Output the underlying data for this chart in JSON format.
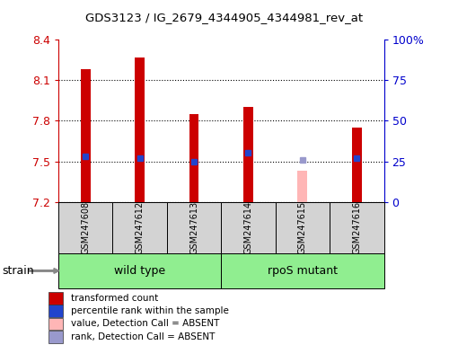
{
  "title": "GDS3123 / IG_2679_4344905_4344981_rev_at",
  "samples": [
    "GSM247608",
    "GSM247612",
    "GSM247613",
    "GSM247614",
    "GSM247615",
    "GSM247616"
  ],
  "bar_values": [
    8.18,
    8.27,
    7.85,
    7.9,
    null,
    7.75
  ],
  "bar_absent_values": [
    null,
    null,
    null,
    null,
    7.43,
    null
  ],
  "percentile_values": [
    28,
    27,
    25,
    30,
    null,
    27
  ],
  "percentile_absent_values": [
    null,
    null,
    null,
    null,
    26,
    null
  ],
  "ylim_left": [
    7.2,
    8.4
  ],
  "ylim_right": [
    0,
    100
  ],
  "yticks_left": [
    7.2,
    7.5,
    7.8,
    8.1,
    8.4
  ],
  "yticks_right": [
    0,
    25,
    50,
    75,
    100
  ],
  "ytick_labels_right": [
    "0",
    "25",
    "50",
    "75",
    "100%"
  ],
  "groups": [
    {
      "label": "wild type",
      "samples_range": [
        0,
        2
      ],
      "color": "#90ee90"
    },
    {
      "label": "rpoS mutant",
      "samples_range": [
        3,
        5
      ],
      "color": "#90ee90"
    }
  ],
  "bar_color": "#cc0000",
  "bar_absent_color": "#ffb6b6",
  "percentile_color": "#2244cc",
  "percentile_absent_color": "#9999cc",
  "bar_width": 0.18,
  "percentile_marker_size": 5,
  "plot_bg_color": "#ffffff",
  "tick_label_color_left": "#cc0000",
  "tick_label_color_right": "#0000cc",
  "sample_box_color": "#d3d3d3",
  "strain_label": "strain",
  "legend_items": [
    {
      "label": "transformed count",
      "color": "#cc0000"
    },
    {
      "label": "percentile rank within the sample",
      "color": "#2244cc"
    },
    {
      "label": "value, Detection Call = ABSENT",
      "color": "#ffb6b6"
    },
    {
      "label": "rank, Detection Call = ABSENT",
      "color": "#9999cc"
    }
  ]
}
